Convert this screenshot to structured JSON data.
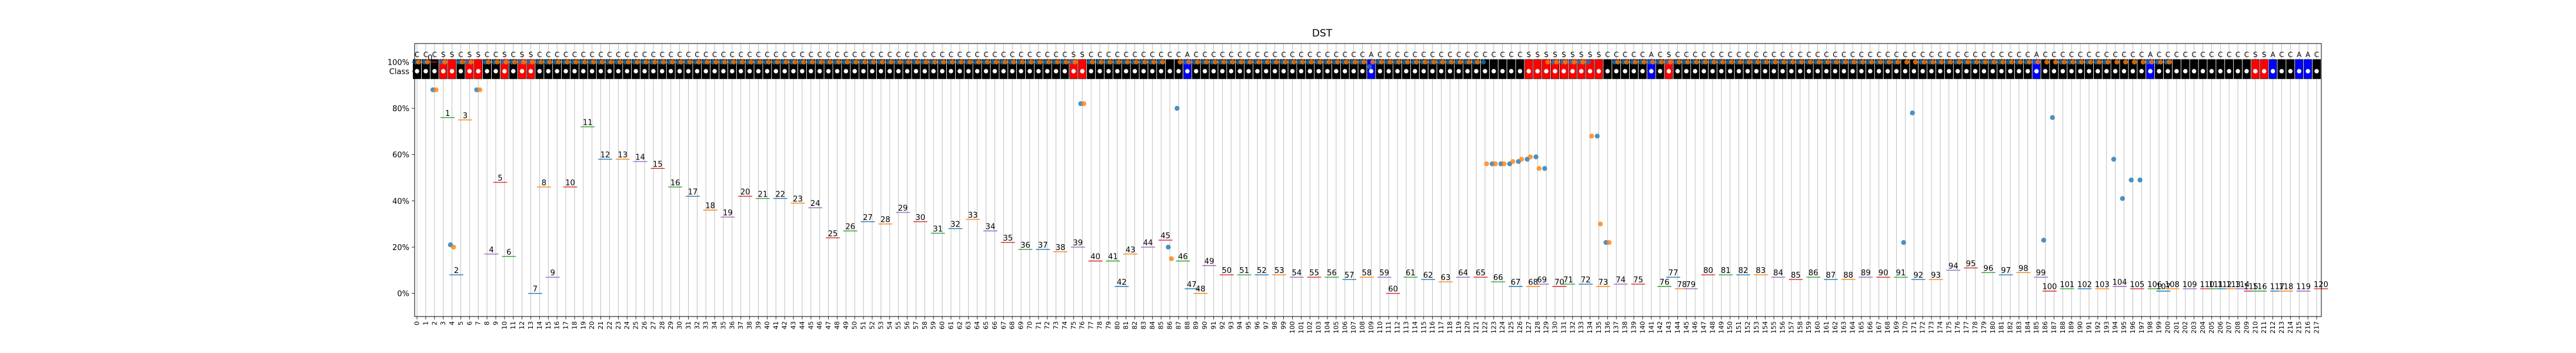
{
  "chart_data": {
    "type": "scatter",
    "title": "DST",
    "xlabel": "",
    "ylabel": "",
    "class_row_label": "Class",
    "x_ticks": [
      "0",
      "1",
      "2",
      "3",
      "4",
      "5",
      "6",
      "7",
      "8",
      "9",
      "10",
      "11",
      "12",
      "13",
      "14",
      "15",
      "16",
      "17",
      "18",
      "19",
      "20",
      "21",
      "22",
      "23",
      "24",
      "25",
      "26",
      "27",
      "28",
      "29",
      "30",
      "31",
      "32",
      "33",
      "34",
      "35",
      "36",
      "37",
      "38",
      "39",
      "40",
      "41",
      "42",
      "43",
      "44",
      "45",
      "46",
      "47",
      "48",
      "49",
      "50",
      "51",
      "52",
      "53",
      "54",
      "55",
      "56",
      "57",
      "58",
      "59",
      "60",
      "61",
      "62",
      "63",
      "64",
      "65",
      "66",
      "67",
      "68",
      "69",
      "70",
      "71",
      "72",
      "73",
      "74",
      "75",
      "76",
      "77",
      "78",
      "79",
      "80",
      "81",
      "82",
      "83",
      "84",
      "85",
      "86",
      "87",
      "88",
      "89",
      "90",
      "91",
      "92",
      "93",
      "94",
      "95",
      "96",
      "97",
      "98",
      "99",
      "100",
      "101",
      "102",
      "103",
      "104",
      "105",
      "106",
      "107",
      "108",
      "109",
      "110",
      "111",
      "112",
      "113",
      "114",
      "115",
      "116",
      "117",
      "118",
      "119",
      "120",
      "121",
      "122",
      "123",
      "124",
      "125",
      "126",
      "127",
      "128",
      "129",
      "130",
      "131",
      "132",
      "133",
      "134",
      "135",
      "136",
      "137",
      "138",
      "139",
      "140",
      "141",
      "142",
      "143",
      "144",
      "145",
      "146",
      "147",
      "148",
      "149",
      "150",
      "151",
      "152",
      "153",
      "154",
      "155",
      "156",
      "157",
      "158",
      "159",
      "160",
      "161",
      "162",
      "163",
      "164",
      "165",
      "166",
      "167",
      "168",
      "169",
      "170",
      "171",
      "172",
      "173",
      "174",
      "175",
      "176",
      "177",
      "178",
      "179",
      "180",
      "181",
      "182",
      "183",
      "184",
      "185",
      "186",
      "187",
      "188",
      "189",
      "190",
      "191",
      "192",
      "193",
      "194",
      "195",
      "196",
      "197",
      "198",
      "199",
      "200",
      "201",
      "202",
      "203",
      "204",
      "205",
      "206",
      "207",
      "208",
      "209",
      "210",
      "211",
      "212",
      "213",
      "214",
      "215",
      "216",
      "217"
    ],
    "y_ticks": [
      "0%",
      "20%",
      "40%",
      "60%",
      "80%",
      "100%"
    ],
    "ylim": [
      -0.1,
      1.08
    ],
    "grid": "vertical",
    "class_colors": {
      "C": "#000000",
      "S": "#ff0000",
      "A": "#0000ff"
    },
    "classes": "CCCSSCSSCCSCSSCCCCCCCCCCCCCCCCCCCCCCCCCCCCCCCCCCCCCCCCCCCCCCCCCCCCCCCCCCCCCSSCCCCCCCCCCCACCCCCCCCCCCCCCCCCCCCACCCCCCCCCCCCCCCCCSSSSSSSSSCCCCCACSCCCCCCCCCCCCCCCCCCCCCCCCCCCCCCCCCCCCCCCCCACCCCCCCCCCCCACCCCCCCCCCCSSACCAACCCCC",
    "series": [
      {
        "name": "",
        "color": "#1f77b4",
        "values": [
          1,
          1,
          0.88,
          1,
          0.21,
          1,
          1,
          0.88,
          1,
          1,
          1,
          1,
          1,
          1,
          1,
          1,
          1,
          1,
          1,
          1,
          1,
          1,
          1,
          1,
          1,
          1,
          1,
          1,
          1,
          1,
          1,
          1,
          1,
          1,
          1,
          1,
          1,
          1,
          1,
          1,
          1,
          1,
          1,
          1,
          1,
          1,
          1,
          1,
          1,
          1,
          1,
          1,
          1,
          1,
          1,
          1,
          1,
          1,
          1,
          1,
          1,
          1,
          1,
          1,
          1,
          1,
          1,
          1,
          1,
          1,
          1,
          1,
          1,
          1,
          1,
          1,
          0.82,
          1,
          1,
          1,
          1,
          1,
          1,
          1,
          1,
          1,
          0.2,
          0.8,
          1,
          1,
          1,
          1,
          1,
          1,
          1,
          1,
          1,
          1,
          1,
          1,
          1,
          1,
          1,
          1,
          1,
          1,
          1,
          1,
          1,
          0.98,
          1,
          1,
          1,
          1,
          1,
          1,
          1,
          1,
          1,
          1,
          1,
          1,
          1,
          0.56,
          0.56,
          0.56,
          0.57,
          0.58,
          0.59,
          0.54,
          1,
          1,
          1,
          1,
          1,
          0.68,
          0.22,
          1,
          1,
          1,
          1,
          1,
          1,
          1,
          1,
          1,
          1,
          1,
          1,
          1,
          1,
          1,
          1,
          1,
          1,
          1,
          1,
          1,
          1,
          1,
          1,
          1,
          1,
          1,
          1,
          1,
          1,
          1,
          1,
          1,
          0.22,
          0.78,
          1,
          1,
          1,
          1,
          1,
          1,
          1,
          1,
          1,
          1,
          1,
          1,
          1,
          1,
          0.23,
          0.76,
          1,
          1,
          1,
          1,
          1,
          1,
          0.58,
          0.41,
          0.49,
          0.49,
          1,
          1,
          1
        ]
      },
      {
        "name": "",
        "color": "#ff7f0e",
        "values": [
          1,
          1,
          0.88,
          1,
          0.2,
          1,
          1,
          0.88,
          1,
          1,
          1,
          1,
          1,
          1,
          1,
          1,
          1,
          1,
          1,
          1,
          1,
          1,
          1,
          1,
          1,
          1,
          1,
          1,
          1,
          1,
          1,
          1,
          1,
          1,
          1,
          1,
          1,
          1,
          1,
          1,
          1,
          1,
          1,
          1,
          1,
          1,
          1,
          1,
          1,
          1,
          1,
          1,
          1,
          1,
          1,
          1,
          1,
          1,
          1,
          1,
          1,
          1,
          1,
          1,
          1,
          1,
          1,
          1,
          1,
          1,
          1,
          1,
          1,
          1,
          1,
          1,
          0.82,
          1,
          1,
          1,
          1,
          1,
          1,
          1,
          1,
          1,
          0.15,
          1,
          1,
          1,
          1,
          1,
          1,
          1,
          1,
          1,
          1,
          1,
          1,
          1,
          1,
          1,
          1,
          1,
          1,
          1,
          1,
          1,
          1,
          1,
          1,
          1,
          1,
          1,
          1,
          1,
          1,
          1,
          1,
          1,
          1,
          1,
          0.56,
          0.56,
          0.56,
          0.57,
          0.58,
          0.59,
          0.54,
          1,
          1,
          1,
          1,
          1,
          0.68,
          0.3,
          0.22,
          1,
          1,
          1,
          1,
          1,
          1,
          1,
          1,
          1,
          1,
          1,
          1,
          1,
          1,
          1,
          1,
          1,
          1,
          1,
          1,
          1,
          1,
          1,
          1,
          1,
          1,
          1,
          1,
          1,
          1,
          1,
          1,
          1,
          1,
          1,
          1,
          1,
          1,
          1,
          1,
          1,
          1,
          1,
          1,
          1,
          1,
          1,
          1,
          1,
          1,
          1,
          1,
          1,
          1,
          1,
          1,
          1,
          1,
          1,
          1,
          1,
          1,
          1,
          1
        ]
      }
    ],
    "annotations": [
      {
        "label": "0",
        "x": 1.5,
        "y": 1.0
      },
      {
        "label": "1",
        "x": 3.5,
        "y": 0.76
      },
      {
        "label": "2",
        "x": 4.5,
        "y": 0.08
      },
      {
        "label": "3",
        "x": 5.5,
        "y": 0.75
      },
      {
        "label": "4",
        "x": 8.5,
        "y": 0.17
      },
      {
        "label": "5",
        "x": 9.5,
        "y": 0.48
      },
      {
        "label": "6",
        "x": 10.5,
        "y": 0.16
      },
      {
        "label": "7",
        "x": 13.5,
        "y": 0.0
      },
      {
        "label": "8",
        "x": 14.5,
        "y": 0.46
      },
      {
        "label": "9",
        "x": 15.5,
        "y": 0.07
      },
      {
        "label": "10",
        "x": 17.5,
        "y": 0.46
      },
      {
        "label": "11",
        "x": 19.5,
        "y": 0.72
      },
      {
        "label": "12",
        "x": 21.5,
        "y": 0.58
      },
      {
        "label": "13",
        "x": 23.5,
        "y": 0.58
      },
      {
        "label": "14",
        "x": 25.5,
        "y": 0.57
      },
      {
        "label": "15",
        "x": 27.5,
        "y": 0.54
      },
      {
        "label": "16",
        "x": 29.5,
        "y": 0.46
      },
      {
        "label": "17",
        "x": 31.5,
        "y": 0.42
      },
      {
        "label": "18",
        "x": 33.5,
        "y": 0.36
      },
      {
        "label": "19",
        "x": 35.5,
        "y": 0.33
      },
      {
        "label": "20",
        "x": 37.5,
        "y": 0.42
      },
      {
        "label": "21",
        "x": 39.5,
        "y": 0.41
      },
      {
        "label": "22",
        "x": 41.5,
        "y": 0.41
      },
      {
        "label": "23",
        "x": 43.5,
        "y": 0.39
      },
      {
        "label": "24",
        "x": 45.5,
        "y": 0.37
      },
      {
        "label": "25",
        "x": 47.5,
        "y": 0.24
      },
      {
        "label": "26",
        "x": 49.5,
        "y": 0.27
      },
      {
        "label": "27",
        "x": 51.5,
        "y": 0.31
      },
      {
        "label": "28",
        "x": 53.5,
        "y": 0.3
      },
      {
        "label": "29",
        "x": 55.5,
        "y": 0.35
      },
      {
        "label": "30",
        "x": 57.5,
        "y": 0.31
      },
      {
        "label": "31",
        "x": 59.5,
        "y": 0.26
      },
      {
        "label": "32",
        "x": 61.5,
        "y": 0.28
      },
      {
        "label": "33",
        "x": 63.5,
        "y": 0.32
      },
      {
        "label": "34",
        "x": 65.5,
        "y": 0.27
      },
      {
        "label": "35",
        "x": 67.5,
        "y": 0.22
      },
      {
        "label": "36",
        "x": 69.5,
        "y": 0.19
      },
      {
        "label": "37",
        "x": 71.5,
        "y": 0.19
      },
      {
        "label": "38",
        "x": 73.5,
        "y": 0.18
      },
      {
        "label": "39",
        "x": 75.5,
        "y": 0.2
      },
      {
        "label": "40",
        "x": 77.5,
        "y": 0.14
      },
      {
        "label": "41",
        "x": 79.5,
        "y": 0.14
      },
      {
        "label": "42",
        "x": 80.5,
        "y": 0.03
      },
      {
        "label": "43",
        "x": 81.5,
        "y": 0.17
      },
      {
        "label": "44",
        "x": 83.5,
        "y": 0.2
      },
      {
        "label": "45",
        "x": 85.5,
        "y": 0.23
      },
      {
        "label": "46",
        "x": 87.5,
        "y": 0.14
      },
      {
        "label": "47",
        "x": 88.5,
        "y": 0.02
      },
      {
        "label": "48",
        "x": 89.5,
        "y": 0.0
      },
      {
        "label": "49",
        "x": 90.5,
        "y": 0.12
      },
      {
        "label": "50",
        "x": 92.5,
        "y": 0.08
      },
      {
        "label": "51",
        "x": 94.5,
        "y": 0.08
      },
      {
        "label": "52",
        "x": 96.5,
        "y": 0.08
      },
      {
        "label": "53",
        "x": 98.5,
        "y": 0.08
      },
      {
        "label": "54",
        "x": 100.5,
        "y": 0.07
      },
      {
        "label": "55",
        "x": 102.5,
        "y": 0.07
      },
      {
        "label": "56",
        "x": 104.5,
        "y": 0.07
      },
      {
        "label": "57",
        "x": 106.5,
        "y": 0.06
      },
      {
        "label": "58",
        "x": 108.5,
        "y": 0.07
      },
      {
        "label": "59",
        "x": 110.5,
        "y": 0.07
      },
      {
        "label": "60",
        "x": 111.5,
        "y": 0.0
      },
      {
        "label": "61",
        "x": 113.5,
        "y": 0.07
      },
      {
        "label": "62",
        "x": 115.5,
        "y": 0.06
      },
      {
        "label": "63",
        "x": 117.5,
        "y": 0.05
      },
      {
        "label": "64",
        "x": 119.5,
        "y": 0.07
      },
      {
        "label": "65",
        "x": 121.5,
        "y": 0.07
      },
      {
        "label": "66",
        "x": 123.5,
        "y": 0.05
      },
      {
        "label": "67",
        "x": 125.5,
        "y": 0.03
      },
      {
        "label": "68",
        "x": 127.5,
        "y": 0.03
      },
      {
        "label": "69",
        "x": 128.5,
        "y": 0.04
      },
      {
        "label": "70",
        "x": 130.5,
        "y": 0.03
      },
      {
        "label": "71",
        "x": 131.5,
        "y": 0.04
      },
      {
        "label": "72",
        "x": 133.5,
        "y": 0.04
      },
      {
        "label": "73",
        "x": 135.5,
        "y": 0.03
      },
      {
        "label": "74",
        "x": 137.5,
        "y": 0.04
      },
      {
        "label": "75",
        "x": 139.5,
        "y": 0.04
      },
      {
        "label": "76",
        "x": 142.5,
        "y": 0.03
      },
      {
        "label": "77",
        "x": 143.5,
        "y": 0.07
      },
      {
        "label": "78",
        "x": 144.5,
        "y": 0.02
      },
      {
        "label": "79",
        "x": 145.5,
        "y": 0.02
      },
      {
        "label": "80",
        "x": 147.5,
        "y": 0.08
      },
      {
        "label": "81",
        "x": 149.5,
        "y": 0.08
      },
      {
        "label": "82",
        "x": 151.5,
        "y": 0.08
      },
      {
        "label": "83",
        "x": 153.5,
        "y": 0.08
      },
      {
        "label": "84",
        "x": 155.5,
        "y": 0.07
      },
      {
        "label": "85",
        "x": 157.5,
        "y": 0.06
      },
      {
        "label": "86",
        "x": 159.5,
        "y": 0.07
      },
      {
        "label": "87",
        "x": 161.5,
        "y": 0.06
      },
      {
        "label": "88",
        "x": 163.5,
        "y": 0.06
      },
      {
        "label": "89",
        "x": 165.5,
        "y": 0.07
      },
      {
        "label": "90",
        "x": 167.5,
        "y": 0.07
      },
      {
        "label": "91",
        "x": 169.5,
        "y": 0.07
      },
      {
        "label": "92",
        "x": 171.5,
        "y": 0.06
      },
      {
        "label": "93",
        "x": 173.5,
        "y": 0.06
      },
      {
        "label": "94",
        "x": 175.5,
        "y": 0.1
      },
      {
        "label": "95",
        "x": 177.5,
        "y": 0.11
      },
      {
        "label": "96",
        "x": 179.5,
        "y": 0.09
      },
      {
        "label": "97",
        "x": 181.5,
        "y": 0.08
      },
      {
        "label": "98",
        "x": 183.5,
        "y": 0.09
      },
      {
        "label": "99",
        "x": 185.5,
        "y": 0.07
      },
      {
        "label": "100",
        "x": 186.5,
        "y": 0.01
      },
      {
        "label": "101",
        "x": 188.5,
        "y": 0.02
      },
      {
        "label": "102",
        "x": 190.5,
        "y": 0.02
      },
      {
        "label": "103",
        "x": 192.5,
        "y": 0.02
      },
      {
        "label": "104",
        "x": 194.5,
        "y": 0.03
      },
      {
        "label": "105",
        "x": 196.5,
        "y": 0.02
      },
      {
        "label": "106",
        "x": 198.5,
        "y": 0.02
      },
      {
        "label": "107",
        "x": 199.5,
        "y": 0.01
      },
      {
        "label": "108",
        "x": 200.5,
        "y": 0.02
      },
      {
        "label": "109",
        "x": 202.5,
        "y": 0.02
      },
      {
        "label": "110",
        "x": 204.5,
        "y": 0.02
      },
      {
        "label": "111",
        "x": 205.5,
        "y": 0.02
      },
      {
        "label": "112",
        "x": 206.5,
        "y": 0.02
      },
      {
        "label": "113",
        "x": 207.5,
        "y": 0.02
      },
      {
        "label": "114",
        "x": 208.5,
        "y": 0.02
      },
      {
        "label": "115",
        "x": 209.5,
        "y": 0.01
      },
      {
        "label": "116",
        "x": 210.5,
        "y": 0.01
      },
      {
        "label": "117",
        "x": 212.5,
        "y": 0.01
      },
      {
        "label": "118",
        "x": 213.5,
        "y": 0.01
      },
      {
        "label": "119",
        "x": 215.5,
        "y": 0.01
      },
      {
        "label": "120",
        "x": 217.5,
        "y": 0.02
      }
    ]
  }
}
